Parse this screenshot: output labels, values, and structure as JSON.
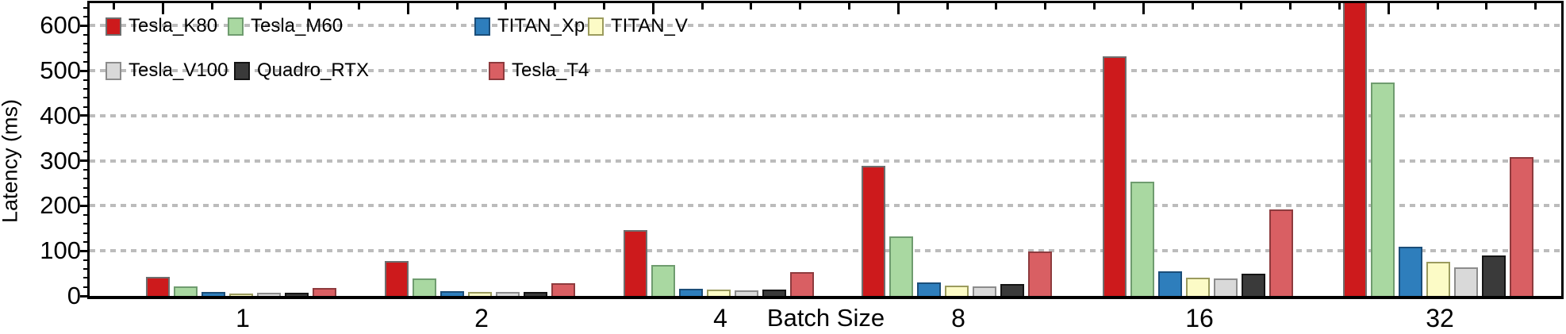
{
  "chart_data": {
    "type": "bar",
    "title": "",
    "xlabel": "Batch Size",
    "ylabel": "Latency (ms)",
    "categories": [
      "1",
      "2",
      "4",
      "8",
      "16",
      "32"
    ],
    "yticks": [
      0,
      100,
      200,
      300,
      400,
      500,
      600
    ],
    "ylim": [
      0,
      650
    ],
    "grid": "horizontal-dotted-gray",
    "legend": {
      "position": "top-left-inside",
      "rows": [
        [
          "Tesla_K80",
          "Tesla_M60",
          "TITAN_Xp",
          "TITAN_V"
        ],
        [
          "Tesla_V100",
          "Quadro_RTX",
          "Tesla_T4"
        ]
      ]
    },
    "series": [
      {
        "name": "Tesla_K80",
        "fill": "#cd1a1c",
        "edge": "#6e6e6e",
        "values": [
          42,
          78,
          146,
          289,
          532,
          680
        ]
      },
      {
        "name": "Tesla_M60",
        "fill": "#a9d8a1",
        "edge": "#6f9c6f",
        "values": [
          22,
          38,
          69,
          132,
          254,
          473
        ]
      },
      {
        "name": "TITAN_Xp",
        "fill": "#2e7ebc",
        "edge": "#1b4e79",
        "values": [
          8,
          10,
          16,
          30,
          55,
          110
        ]
      },
      {
        "name": "TITAN_V",
        "fill": "#fcfbc6",
        "edge": "#9b9b5e",
        "values": [
          6,
          8,
          14,
          23,
          40,
          75
        ]
      },
      {
        "name": "Tesla_V100",
        "fill": "#d9d9d9",
        "edge": "#8c8c8c",
        "values": [
          7,
          9,
          12,
          21,
          38,
          64
        ]
      },
      {
        "name": "Quadro_RTX",
        "fill": "#3a3a3a",
        "edge": "#141414",
        "values": [
          7,
          9,
          15,
          27,
          50,
          89
        ]
      },
      {
        "name": "Tesla_T4",
        "fill": "#d95f63",
        "edge": "#8e3b3e",
        "values": [
          17,
          29,
          52,
          98,
          192,
          308
        ]
      }
    ],
    "notes": "Tesla_K80 bar at batch size 32 is clipped by the top of the axis (exceeds 650 ms)"
  }
}
